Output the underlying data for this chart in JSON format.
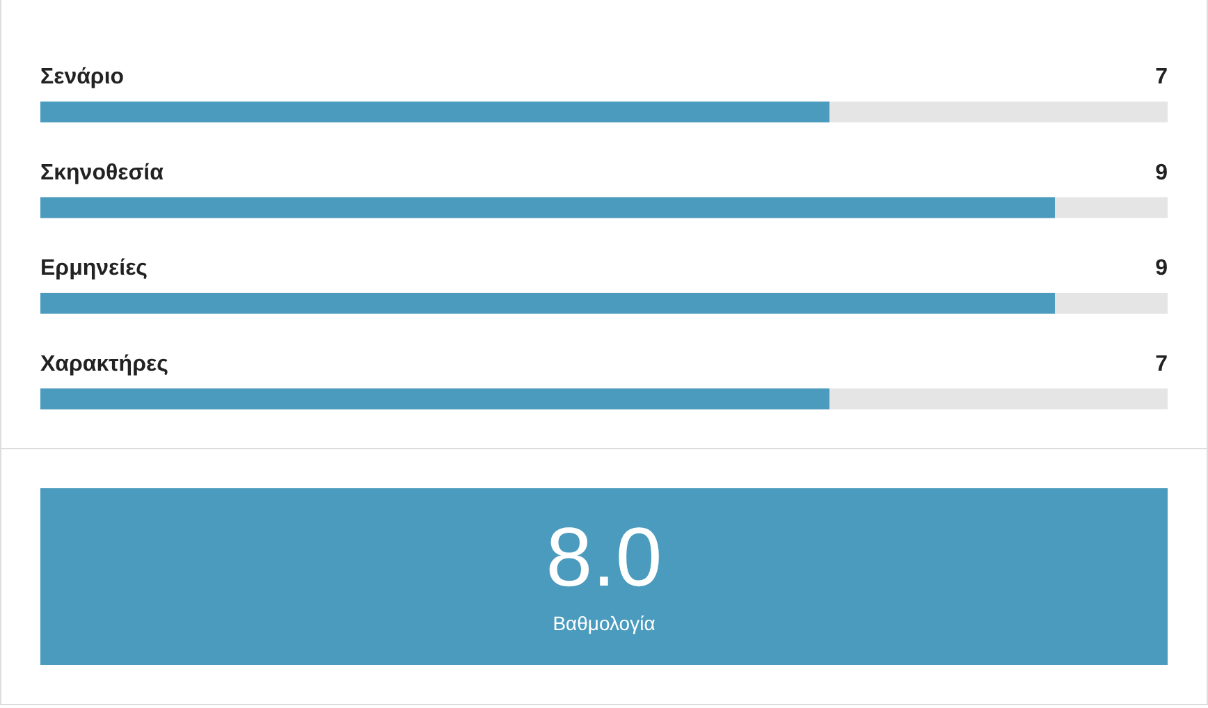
{
  "chart_data": [
    {
      "type": "bar",
      "orientation": "horizontal",
      "categories": [
        "Σενάριο",
        "Σκηνοθεσία",
        "Ερμηνείες",
        "Χαρακτήρες"
      ],
      "values": [
        7,
        9,
        9,
        7
      ],
      "color": "#4a9bbd",
      "xlim": [
        0,
        10
      ],
      "data_labels": true,
      "tick_labels": "y"
    },
    {
      "type": "other",
      "title": "8.0",
      "subtitle": "Βαθμολογία",
      "color": "#4a9bbd"
    }
  ]
}
